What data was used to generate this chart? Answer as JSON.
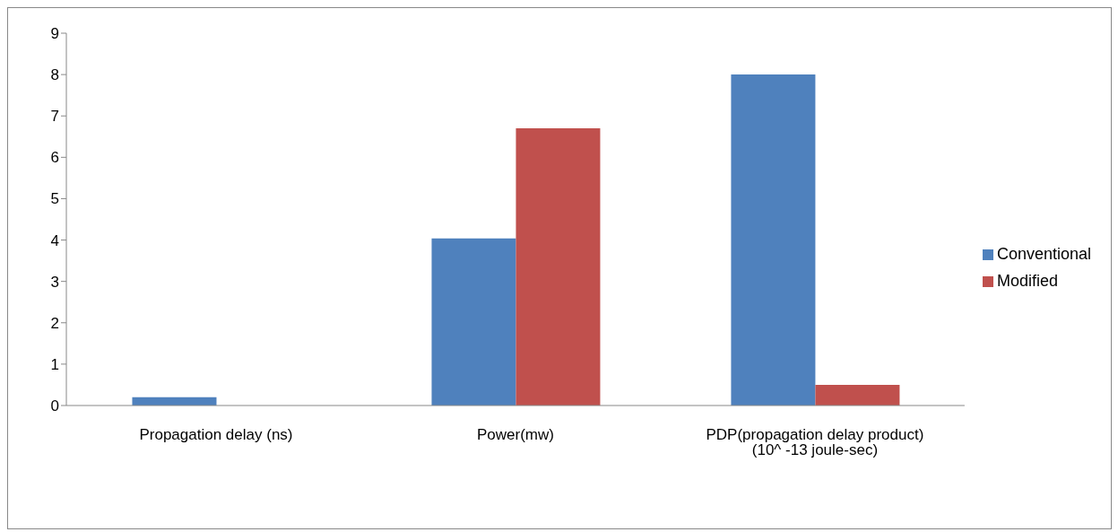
{
  "chart_data": {
    "type": "bar",
    "categories": [
      "Propagation delay (ns)",
      "Power(mw)",
      "PDP(propagation delay product)    (10^ -13 joule-sec)"
    ],
    "series": [
      {
        "name": "Conventional",
        "color": "#4f81bd",
        "values": [
          0.2,
          4.04,
          8.0
        ]
      },
      {
        "name": "Modified",
        "color": "#c0504d",
        "values": [
          0,
          6.7,
          0.5
        ]
      }
    ],
    "ylim": [
      0,
      9
    ],
    "yticks": [
      0,
      1,
      2,
      3,
      4,
      5,
      6,
      7,
      8,
      9
    ],
    "grid": false,
    "legend": "right"
  }
}
